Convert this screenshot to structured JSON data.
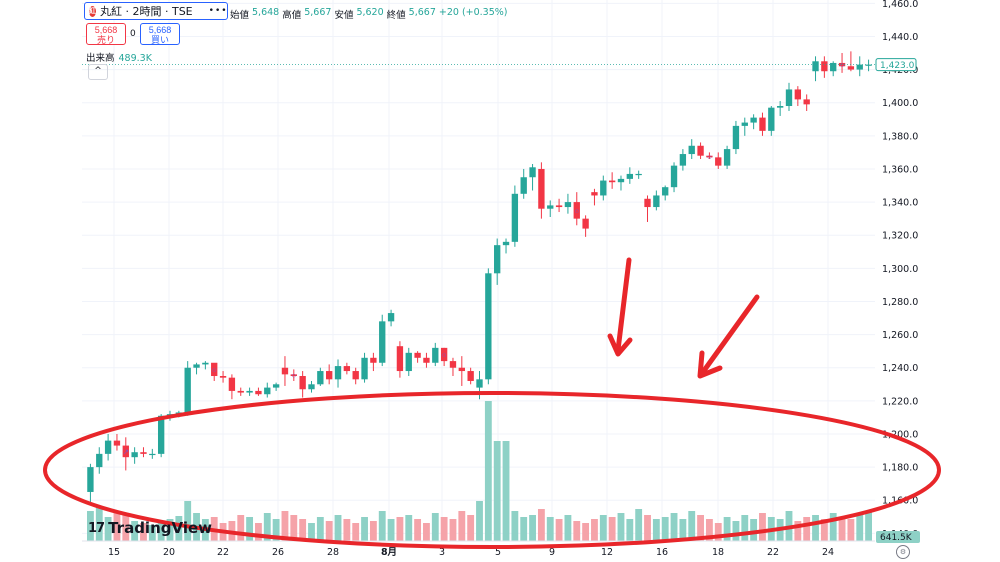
{
  "header": {
    "symbol": "丸紅 · 2時間 · TSE",
    "logo": "紅",
    "ohlc": [
      {
        "label": "始値",
        "value": "5,648"
      },
      {
        "label": "高値",
        "value": "5,667"
      },
      {
        "label": "安値",
        "value": "5,620"
      },
      {
        "label": "終値",
        "value": "5,667"
      },
      {
        "label": "",
        "value": "+20 (+0.35%)"
      }
    ],
    "sell_price": "5,668",
    "sell_label": "売り",
    "buy_price": "5,668",
    "buy_label": "買い",
    "spread": "0",
    "volume_label": "出来高",
    "volume_value": "489.3K",
    "collapse": "^",
    "more": "•••",
    "brand": "TradingView",
    "brand_mark": "17"
  },
  "colors": {
    "up": "#26a69a",
    "down": "#f23645",
    "vol_up": "#8ed1c6",
    "vol_down": "#f5a3a9",
    "annotation": "#e8262a"
  },
  "chart_data": {
    "type": "candlestick",
    "ylim": [
      1136,
      1462
    ],
    "y_ticks": [
      "1,460.0",
      "1,440.0",
      "1,420.0",
      "1,400.0",
      "1,380.0",
      "1,360.0",
      "1,340.0",
      "1,320.0",
      "1,300.0",
      "1,280.0",
      "1,260.0",
      "1,240.0",
      "1,220.0",
      "1,200.0",
      "1,180.0",
      "1,160.0",
      "1,140.0"
    ],
    "y_tick_values": [
      1460,
      1440,
      1420,
      1400,
      1380,
      1360,
      1340,
      1320,
      1300,
      1280,
      1260,
      1240,
      1220,
      1200,
      1180,
      1160,
      1140
    ],
    "x_ticks": [
      "15",
      "20",
      "22",
      "26",
      "28",
      "8月",
      "3",
      "5",
      "9",
      "12",
      "16",
      "18",
      "22",
      "24"
    ],
    "last_price": "1,423.0",
    "last_volume": "641.5K",
    "candles": [
      [
        1165,
        1182,
        1157,
        1180
      ],
      [
        1180,
        1192,
        1176,
        1188
      ],
      [
        1188,
        1200,
        1184,
        1196
      ],
      [
        1196,
        1200,
        1190,
        1193
      ],
      [
        1193,
        1198,
        1178,
        1186
      ],
      [
        1186,
        1192,
        1182,
        1189
      ],
      [
        1189,
        1192,
        1186,
        1188
      ],
      [
        1188,
        1191,
        1185,
        1188
      ],
      [
        1188,
        1212,
        1186,
        1211
      ],
      [
        1211,
        1214,
        1208,
        1212
      ],
      [
        1212,
        1214,
        1210,
        1213
      ],
      [
        1213,
        1244,
        1211,
        1240
      ],
      [
        1240,
        1243,
        1236,
        1242
      ],
      [
        1242,
        1244,
        1239,
        1243
      ],
      [
        1243,
        1240,
        1232,
        1235
      ],
      [
        1235,
        1238,
        1231,
        1234
      ],
      [
        1234,
        1236,
        1221,
        1226
      ],
      [
        1226,
        1228,
        1223,
        1225
      ],
      [
        1225,
        1228,
        1223,
        1226
      ],
      [
        1226,
        1228,
        1223,
        1224
      ],
      [
        1224,
        1231,
        1222,
        1228
      ],
      [
        1228,
        1231,
        1226,
        1230
      ],
      [
        1240,
        1247,
        1229,
        1236
      ],
      [
        1236,
        1239,
        1232,
        1235
      ],
      [
        1235,
        1238,
        1222,
        1227
      ],
      [
        1227,
        1232,
        1225,
        1230
      ],
      [
        1230,
        1240,
        1229,
        1238
      ],
      [
        1238,
        1242,
        1230,
        1233
      ],
      [
        1233,
        1245,
        1228,
        1241
      ],
      [
        1241,
        1243,
        1236,
        1238
      ],
      [
        1238,
        1240,
        1230,
        1233
      ],
      [
        1233,
        1249,
        1231,
        1246
      ],
      [
        1246,
        1249,
        1238,
        1243
      ],
      [
        1243,
        1272,
        1241,
        1268
      ],
      [
        1268,
        1275,
        1265,
        1273
      ],
      [
        1253,
        1256,
        1234,
        1238
      ],
      [
        1238,
        1252,
        1235,
        1249
      ],
      [
        1249,
        1250,
        1243,
        1246
      ],
      [
        1246,
        1249,
        1240,
        1243
      ],
      [
        1243,
        1255,
        1241,
        1252
      ],
      [
        1252,
        1252,
        1241,
        1244
      ],
      [
        1244,
        1246,
        1235,
        1240
      ],
      [
        1240,
        1247,
        1229,
        1238
      ],
      [
        1238,
        1240,
        1230,
        1232
      ],
      [
        1228,
        1238,
        1221,
        1233
      ],
      [
        1233,
        1300,
        1230,
        1297
      ],
      [
        1297,
        1318,
        1290,
        1314
      ],
      [
        1314,
        1318,
        1309,
        1316
      ],
      [
        1316,
        1350,
        1313,
        1345
      ],
      [
        1345,
        1360,
        1342,
        1355
      ],
      [
        1355,
        1363,
        1347,
        1361
      ],
      [
        1360,
        1364,
        1330,
        1336
      ],
      [
        1336,
        1341,
        1331,
        1338
      ],
      [
        1338,
        1342,
        1334,
        1337
      ],
      [
        1337,
        1345,
        1333,
        1340
      ],
      [
        1340,
        1346,
        1326,
        1330
      ],
      [
        1330,
        1332,
        1319,
        1324
      ],
      [
        1346,
        1348,
        1338,
        1344
      ],
      [
        1344,
        1356,
        1341,
        1353
      ],
      [
        1353,
        1358,
        1348,
        1352
      ],
      [
        1352,
        1356,
        1347,
        1354
      ],
      [
        1354,
        1361,
        1351,
        1357
      ],
      [
        1357,
        1359,
        1354,
        1357
      ],
      [
        1342,
        1344,
        1328,
        1337
      ],
      [
        1337,
        1347,
        1335,
        1344
      ],
      [
        1344,
        1350,
        1341,
        1349
      ],
      [
        1349,
        1364,
        1346,
        1362
      ],
      [
        1362,
        1372,
        1359,
        1369
      ],
      [
        1369,
        1378,
        1366,
        1374
      ],
      [
        1374,
        1376,
        1366,
        1368
      ],
      [
        1368,
        1370,
        1366,
        1367
      ],
      [
        1367,
        1370,
        1360,
        1362
      ],
      [
        1362,
        1374,
        1360,
        1372
      ],
      [
        1372,
        1389,
        1369,
        1386
      ],
      [
        1386,
        1391,
        1380,
        1388
      ],
      [
        1388,
        1393,
        1384,
        1391
      ],
      [
        1391,
        1394,
        1380,
        1383
      ],
      [
        1383,
        1398,
        1380,
        1397
      ],
      [
        1397,
        1401,
        1392,
        1398
      ],
      [
        1398,
        1412,
        1395,
        1408
      ],
      [
        1408,
        1410,
        1398,
        1402
      ],
      [
        1402,
        1405,
        1395,
        1399
      ],
      [
        1419,
        1428,
        1413,
        1425
      ],
      [
        1425,
        1428,
        1415,
        1419
      ],
      [
        1419,
        1425,
        1416,
        1424
      ],
      [
        1424,
        1430,
        1418,
        1422
      ],
      [
        1422,
        1431,
        1419,
        1420
      ],
      [
        1420,
        1428,
        1416,
        1423
      ],
      [
        1423,
        1426,
        1419,
        1423
      ]
    ],
    "volumes": [
      30,
      35,
      24,
      28,
      26,
      20,
      18,
      16,
      20,
      22,
      25,
      40,
      28,
      22,
      24,
      18,
      20,
      26,
      24,
      18,
      28,
      22,
      30,
      26,
      22,
      18,
      24,
      20,
      26,
      22,
      18,
      24,
      20,
      30,
      22,
      24,
      26,
      22,
      18,
      28,
      24,
      22,
      30,
      26,
      40,
      140,
      100,
      100,
      30,
      24,
      26,
      32,
      24,
      22,
      26,
      20,
      18,
      22,
      26,
      24,
      28,
      22,
      32,
      26,
      22,
      24,
      28,
      22,
      30,
      26,
      22,
      18,
      24,
      20,
      26,
      22,
      28,
      24,
      22,
      30,
      20,
      24,
      26,
      22,
      28,
      24,
      22,
      26,
      30
    ],
    "markers": [
      [
        4,
        "↗"
      ],
      [
        14,
        "○"
      ],
      [
        23,
        "○"
      ],
      [
        40,
        "○"
      ],
      [
        55,
        "○"
      ],
      [
        70,
        "○"
      ],
      [
        85,
        "○"
      ]
    ]
  },
  "annotations": {
    "arrows": 2,
    "ellipse": 1
  }
}
